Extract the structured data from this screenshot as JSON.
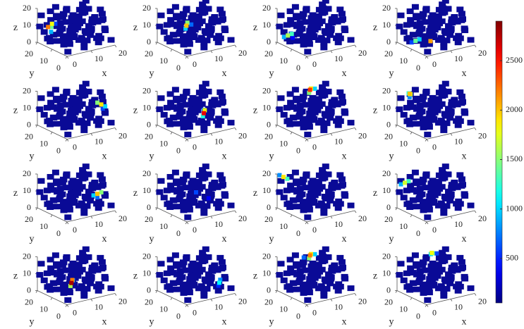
{
  "chart_data": {
    "type": "scatter3d-grid",
    "xlabel": "x",
    "ylabel": "y",
    "zlabel": "z",
    "xlim": [
      0,
      20
    ],
    "ylim": [
      0,
      20
    ],
    "zlim": [
      0,
      20
    ],
    "xticks": [
      0,
      10,
      20
    ],
    "yticks": [
      0,
      10,
      20
    ],
    "zticks": [
      0,
      10,
      20
    ],
    "colormap": "jet",
    "colorbar": {
      "lim": [
        50,
        2900
      ],
      "ticks": [
        500,
        1000,
        1500,
        2000,
        2500
      ]
    },
    "cloud": {
      "color": "#0a0a96",
      "x": [
        1,
        3,
        5,
        7,
        9,
        11,
        13,
        15,
        17,
        19,
        1,
        3,
        5,
        7,
        9,
        11,
        13,
        15,
        17,
        19,
        1,
        3,
        5,
        7,
        9,
        11,
        13,
        15,
        17,
        19,
        1,
        3,
        5,
        7,
        9,
        11,
        13,
        15,
        17,
        19,
        1,
        3,
        5,
        7,
        9,
        11,
        13,
        15,
        17,
        19,
        1,
        3,
        5,
        7,
        9,
        11,
        13,
        15,
        17,
        19,
        1,
        3,
        5,
        7,
        9,
        11,
        13,
        15,
        17,
        19,
        1,
        3,
        5,
        7,
        9,
        11,
        13,
        15,
        17,
        19,
        1,
        3,
        5,
        7,
        9,
        11,
        13,
        15,
        17,
        19,
        1,
        3,
        5,
        7,
        9,
        11,
        13,
        15,
        17,
        19
      ],
      "y": [
        1,
        2,
        0,
        1,
        3,
        2,
        1,
        0,
        2,
        1,
        4,
        3,
        5,
        4,
        3,
        5,
        4,
        3,
        4,
        5,
        6,
        7,
        6,
        7,
        6,
        7,
        6,
        7,
        6,
        7,
        9,
        8,
        9,
        8,
        9,
        8,
        9,
        8,
        9,
        8,
        11,
        10,
        11,
        10,
        11,
        10,
        11,
        10,
        11,
        10,
        13,
        12,
        13,
        12,
        13,
        12,
        13,
        12,
        13,
        12,
        15,
        14,
        15,
        14,
        15,
        14,
        15,
        14,
        15,
        14,
        17,
        16,
        17,
        16,
        17,
        16,
        17,
        16,
        17,
        16,
        19,
        18,
        19,
        18,
        19,
        18,
        19,
        18,
        19,
        18,
        20,
        0,
        20,
        19,
        1,
        20,
        10,
        20,
        5,
        15
      ],
      "z": [
        2,
        15,
        8,
        18,
        4,
        12,
        6,
        17,
        10,
        3,
        10,
        5,
        19,
        13,
        1,
        8,
        16,
        2,
        14,
        7,
        17,
        3,
        11,
        6,
        14,
        19,
        9,
        12,
        4,
        16,
        5,
        12,
        2,
        16,
        9,
        4,
        18,
        7,
        13,
        1,
        14,
        8,
        17,
        3,
        11,
        15,
        1,
        19,
        6,
        10,
        3,
        18,
        7,
        13,
        2,
        9,
        14,
        5,
        17,
        12,
        12,
        6,
        15,
        1,
        18,
        5,
        10,
        16,
        3,
        8,
        7,
        19,
        4,
        10,
        15,
        2,
        13,
        8,
        18,
        5,
        16,
        2,
        12,
        8,
        5,
        17,
        3,
        11,
        14,
        19,
        9,
        11,
        1,
        19,
        6,
        13,
        20,
        4,
        20,
        0
      ]
    },
    "panels": [
      {
        "x": [
          2,
          3,
          4,
          2,
          5
        ],
        "y": [
          16,
          15,
          17,
          14,
          16
        ],
        "z": [
          10,
          12,
          9,
          8,
          11
        ],
        "values": [
          2200,
          1800,
          1400,
          900,
          600
        ]
      },
      {
        "x": [
          6,
          7,
          5,
          8
        ],
        "y": [
          10,
          11,
          9,
          10
        ],
        "z": [
          12,
          13,
          11,
          12
        ],
        "values": [
          2000,
          1500,
          1000,
          700
        ]
      },
      {
        "x": [
          2,
          3,
          1,
          2,
          4
        ],
        "y": [
          16,
          15,
          17,
          14,
          16
        ],
        "z": [
          5,
          6,
          4,
          7,
          3
        ],
        "values": [
          1600,
          1300,
          900,
          600,
          400
        ]
      },
      {
        "x": [
          4,
          5,
          3,
          9
        ],
        "y": [
          14,
          13,
          15,
          12
        ],
        "z": [
          2,
          3,
          1,
          1
        ],
        "values": [
          1400,
          1000,
          600,
          2100
        ]
      },
      {
        "x": [
          18,
          17,
          19,
          18
        ],
        "y": [
          6,
          7,
          5,
          5
        ],
        "z": [
          12,
          13,
          11,
          10
        ],
        "values": [
          1900,
          1500,
          1000,
          600
        ]
      },
      {
        "x": [
          12,
          13,
          11,
          12
        ],
        "y": [
          8,
          9,
          7,
          8
        ],
        "z": [
          8,
          9,
          7,
          10
        ],
        "values": [
          2600,
          1800,
          1200,
          700
        ]
      },
      {
        "x": [
          10,
          11,
          9,
          12
        ],
        "y": [
          14,
          15,
          13,
          14
        ],
        "z": [
          20,
          20,
          19,
          20
        ],
        "values": [
          2400,
          1900,
          1500,
          1000
        ]
      },
      {
        "x": [
          4,
          5,
          3,
          4
        ],
        "y": [
          18,
          19,
          17,
          18
        ],
        "z": [
          18,
          17,
          19,
          16
        ],
        "values": [
          2000,
          1700,
          1200,
          800
        ]
      },
      {
        "x": [
          17,
          18,
          16,
          17
        ],
        "y": [
          7,
          6,
          8,
          7
        ],
        "z": [
          8,
          9,
          7,
          6
        ],
        "values": [
          2000,
          1500,
          1000,
          700
        ]
      },
      {
        "x": [
          10,
          14
        ],
        "y": [
          10,
          8
        ],
        "z": [
          10,
          6
        ],
        "values": [
          600,
          400
        ]
      },
      {
        "x": [
          2,
          3,
          1
        ],
        "y": [
          19,
          18,
          20
        ],
        "z": [
          18,
          17,
          19
        ],
        "values": [
          1900,
          1300,
          800
        ]
      },
      {
        "x": [
          2,
          3,
          1
        ],
        "y": [
          18,
          17,
          19
        ],
        "z": [
          15,
          16,
          14
        ],
        "values": [
          1700,
          1300,
          900
        ]
      },
      {
        "x": [
          8,
          9,
          7,
          8
        ],
        "y": [
          10,
          11,
          9,
          9
        ],
        "z": [
          6,
          7,
          5,
          8
        ],
        "values": [
          2800,
          2200,
          1600,
          900
        ]
      },
      {
        "x": [
          16,
          17,
          15
        ],
        "y": [
          4,
          5,
          3
        ],
        "z": [
          6,
          7,
          5
        ],
        "values": [
          1100,
          800,
          500
        ]
      },
      {
        "x": [
          10,
          11,
          9,
          12,
          8
        ],
        "y": [
          14,
          15,
          13,
          14,
          15
        ],
        "z": [
          20,
          20,
          19,
          20,
          19
        ],
        "values": [
          2200,
          1900,
          1500,
          1000,
          700
        ]
      },
      {
        "x": [
          12,
          13,
          11,
          14
        ],
        "y": [
          16,
          17,
          15,
          16
        ],
        "z": [
          20,
          19,
          20,
          19
        ],
        "values": [
          1800,
          1400,
          1000,
          600
        ]
      }
    ]
  }
}
